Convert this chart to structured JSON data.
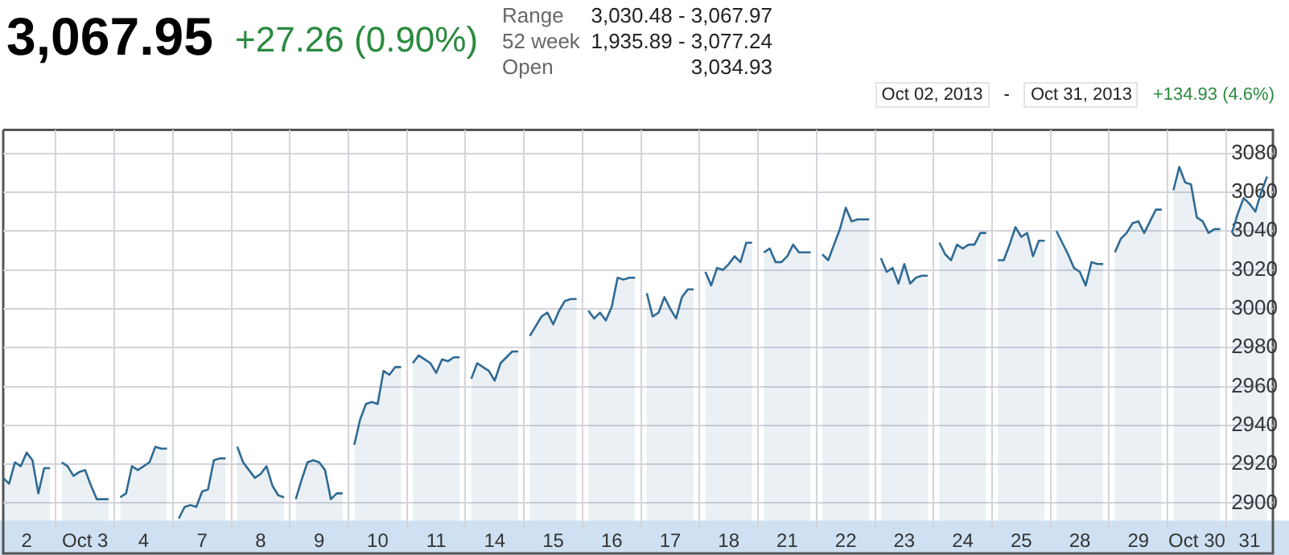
{
  "chart_data": {
    "type": "area",
    "title": "3,067.95",
    "subtitle": "+27.26 (0.90%)",
    "annotations": [
      "Range",
      "3,030.48 - 3,067.97",
      "52 week",
      "1,935.89 - 3,077.24",
      "Open",
      "3,034.93",
      "Oct 02, 2013",
      "-",
      "Oct 31, 2013",
      "+134.93 (4.6%)"
    ],
    "categories": [
      null,
      null,
      null,
      null,
      "2",
      null,
      null,
      null,
      null,
      null,
      null,
      null,
      null,
      null,
      "Oct 3",
      null,
      null,
      null,
      null,
      null,
      null,
      null,
      null,
      null,
      "4",
      null,
      null,
      null,
      null,
      null,
      null,
      null,
      null,
      null,
      "7",
      null,
      null,
      null,
      null,
      null,
      null,
      null,
      null,
      null,
      "8",
      null,
      null,
      null,
      null,
      null,
      null,
      null,
      null,
      null,
      "9",
      null,
      null,
      null,
      null,
      null,
      null,
      null,
      null,
      null,
      "10",
      null,
      null,
      null,
      null,
      null,
      null,
      null,
      null,
      null,
      "11",
      null,
      null,
      null,
      null,
      null,
      null,
      null,
      null,
      null,
      "14",
      null,
      null,
      null,
      null,
      null,
      null,
      null,
      null,
      null,
      "15",
      null,
      null,
      null,
      null,
      null,
      null,
      null,
      null,
      null,
      "16",
      null,
      null,
      null,
      null,
      null,
      null,
      null,
      null,
      null,
      "17",
      null,
      null,
      null,
      null,
      null,
      null,
      null,
      null,
      null,
      "18",
      null,
      null,
      null,
      null,
      null,
      null,
      null,
      null,
      null,
      "21",
      null,
      null,
      null,
      null,
      null,
      null,
      null,
      null,
      null,
      "22",
      null,
      null,
      null,
      null,
      null,
      null,
      null,
      null,
      null,
      "23",
      null,
      null,
      null,
      null,
      null,
      null,
      null,
      null,
      null,
      "24",
      null,
      null,
      null,
      null,
      null,
      null,
      null,
      null,
      null,
      "25",
      null,
      null,
      null,
      null,
      null,
      null,
      null,
      null,
      null,
      "28",
      null,
      null,
      null,
      null,
      null,
      null,
      null,
      null,
      null,
      "29",
      null,
      null,
      null,
      null,
      null,
      null,
      null,
      null,
      null,
      "Oct 30",
      null,
      null,
      null,
      null,
      null,
      null,
      null,
      null,
      "31",
      null,
      null,
      null,
      null
    ],
    "series": [
      {
        "color": "#2f6a94",
        "values": [
          2913,
          2910,
          2921,
          2919,
          2926,
          2922,
          2905,
          2918,
          2918,
          null,
          2921,
          2919,
          2914,
          2916,
          2917,
          2909,
          2902,
          2902,
          2902,
          null,
          2903,
          2905,
          2919,
          2917,
          2919,
          2921,
          2929,
          2928,
          2928,
          null,
          2892,
          2898,
          2899,
          2898,
          2906,
          2907,
          2922,
          2923,
          2923,
          null,
          2929,
          2921,
          2917,
          2913,
          2915,
          2919,
          2909,
          2904,
          2903,
          null,
          2902,
          2912,
          2921,
          2922,
          2921,
          2917,
          2902,
          2905,
          2905,
          null,
          2930,
          2943,
          2951,
          2952,
          2951,
          2968,
          2966,
          2970,
          2970,
          null,
          2972,
          2976,
          2974,
          2972,
          2967,
          2974,
          2973,
          2975,
          2975,
          null,
          2964,
          2972,
          2970,
          2968,
          2963,
          2972,
          2975,
          2978,
          2978,
          null,
          2986,
          2991,
          2996,
          2998,
          2992,
          2999,
          3004,
          3005,
          3005,
          null,
          2999,
          2995,
          2998,
          2994,
          3001,
          3016,
          3015,
          3016,
          3016,
          null,
          3008,
          2996,
          2998,
          3006,
          3000,
          2995,
          3006,
          3010,
          3010,
          null,
          3019,
          3012,
          3021,
          3020,
          3023,
          3027,
          3024,
          3034,
          3034,
          null,
          3029,
          3031,
          3024,
          3024,
          3027,
          3033,
          3029,
          3029,
          3029,
          null,
          3028,
          3025,
          3033,
          3041,
          3052,
          3045,
          3046,
          3046,
          3046,
          null,
          3026,
          3019,
          3021,
          3013,
          3023,
          3013,
          3016,
          3017,
          3017,
          null,
          3034,
          3028,
          3025,
          3033,
          3031,
          3033,
          3033,
          3039,
          3039,
          null,
          3025,
          3025,
          3033,
          3042,
          3037,
          3039,
          3027,
          3035,
          3035,
          null,
          3040,
          3034,
          3028,
          3021,
          3019,
          3012,
          3024,
          3023,
          3023,
          null,
          3029,
          3036,
          3039,
          3044,
          3045,
          3039,
          3045,
          3051,
          3051,
          null,
          3061,
          3073,
          3065,
          3064,
          3047,
          3045,
          3039,
          3041,
          3041,
          null,
          3039,
          3049,
          3057,
          3054,
          3050,
          3060,
          3068,
          null
        ]
      }
    ],
    "ylim": [
      2891,
      3092
    ],
    "yticks": [
      2900,
      2920,
      2940,
      2960,
      2980,
      3000,
      3020,
      3040,
      3060,
      3080
    ],
    "grid": true,
    "legend": false,
    "marker": "none",
    "line_style": "solid"
  }
}
